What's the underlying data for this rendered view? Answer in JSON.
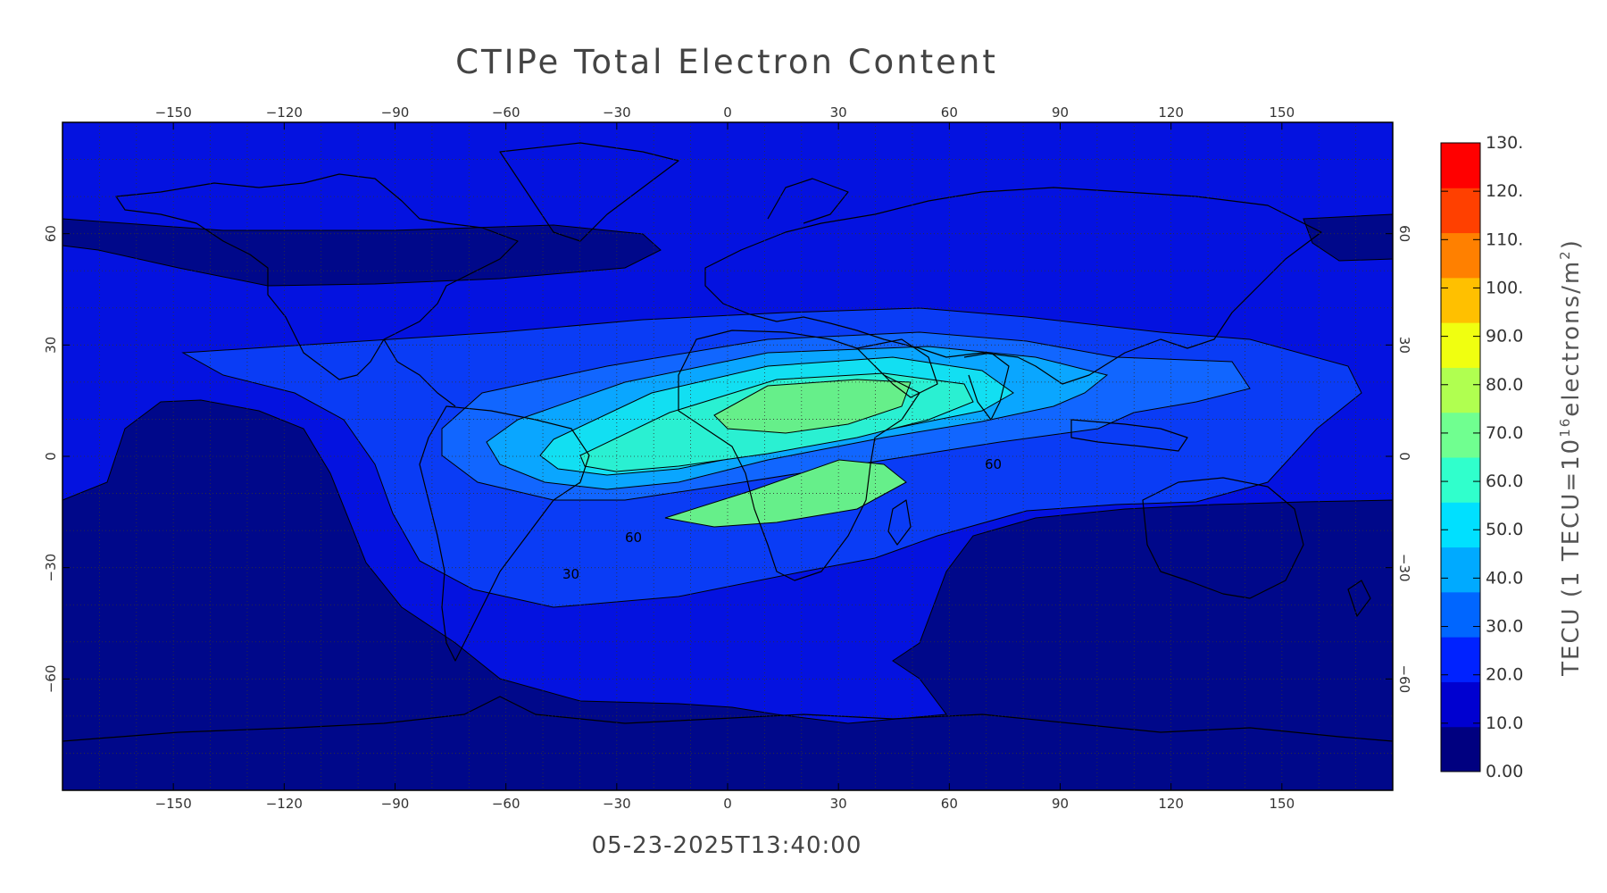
{
  "title": "CTIPe Total Electron Content",
  "timestamp": "05-23-2025T13:40:00",
  "map": {
    "projection": "cylindrical equidistant",
    "lon_range": [
      -180,
      180
    ],
    "lat_range": [
      -90,
      90
    ],
    "lon_ticks": [
      -150,
      -120,
      -90,
      -60,
      -30,
      0,
      30,
      60,
      90,
      120,
      150
    ],
    "lat_ticks": [
      -60,
      -30,
      0,
      30,
      60
    ],
    "grid": "dotted, 10 degree",
    "contour_labels": [
      {
        "text": "60",
        "lon": -25,
        "lat": -21
      },
      {
        "text": "30",
        "lon": -43,
        "lat": -32
      },
      {
        "text": "60",
        "lon": 70,
        "lat": 0
      }
    ],
    "features": [
      "continent coastlines",
      "TEC contours (10 TECU interval)",
      "equatorial ionization anomaly crests near 15N and 15S over Africa/Atlantic"
    ]
  },
  "colorbar": {
    "title": "TECU (1 TECU=10",
    "title_sup": "16",
    "title_end": "electrons/m",
    "title_sup2": "2",
    "title_close": ")",
    "min": 0,
    "max": 130,
    "tick_labels": [
      "0.00",
      "10.0",
      "20.0",
      "30.0",
      "40.0",
      "50.0",
      "60.0",
      "70.0",
      "80.0",
      "90.0",
      "100.",
      "110.",
      "120.",
      "130."
    ],
    "colors": [
      "#000080",
      "#0000d0",
      "#0022ff",
      "#0066ff",
      "#00aaff",
      "#00e0ff",
      "#30ffcc",
      "#70ff90",
      "#b0ff50",
      "#f0ff10",
      "#ffc000",
      "#ff8000",
      "#ff4000",
      "#ff0000"
    ]
  },
  "tec_levels": [
    {
      "min": 0,
      "color": "#00088a"
    },
    {
      "min": 10,
      "color": "#0412e0"
    },
    {
      "min": 20,
      "color": "#0a3cf5"
    },
    {
      "min": 30,
      "color": "#1166ff"
    },
    {
      "min": 40,
      "color": "#0aa6ff"
    },
    {
      "min": 50,
      "color": "#12dff2"
    },
    {
      "min": 60,
      "color": "#2af0d2"
    },
    {
      "min": 70,
      "color": "#66ef8a"
    }
  ]
}
